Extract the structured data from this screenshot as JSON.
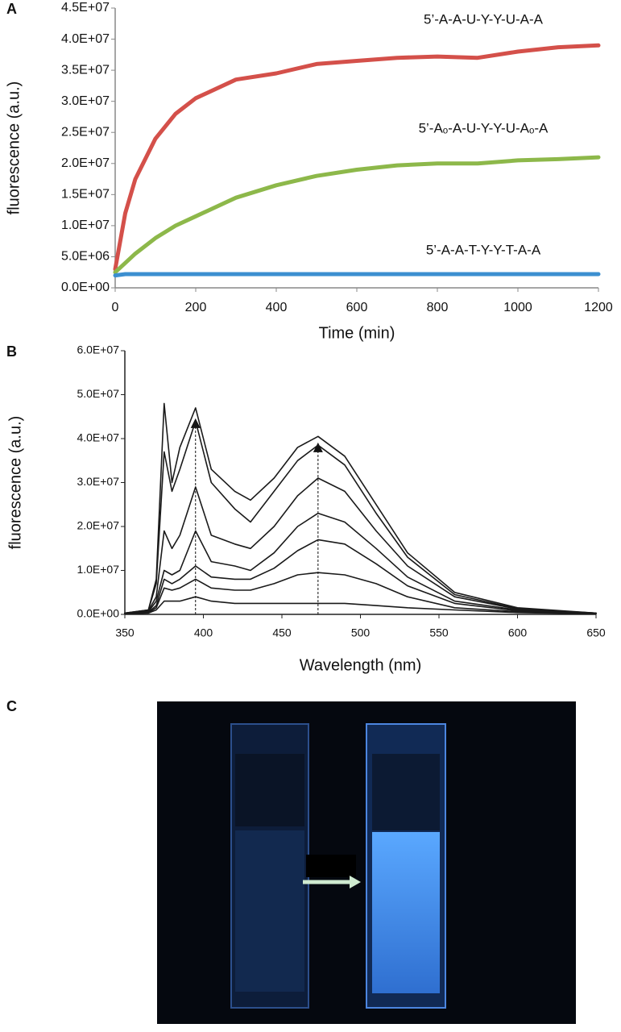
{
  "chart_data": [
    {
      "type": "line",
      "panel": "A",
      "x_label": "Time (min)",
      "y_label": "fluorescence (a.u.)",
      "x": [
        0,
        25,
        50,
        100,
        150,
        200,
        300,
        400,
        500,
        600,
        700,
        800,
        900,
        1000,
        1100,
        1200
      ],
      "series": [
        {
          "name": "5’-A-A-U-Y-Y-U-A-A",
          "color": "#d4504a",
          "values": [
            3000000,
            12000000,
            17500000,
            24000000,
            28000000,
            30500000,
            33500000,
            34500000,
            36000000,
            36500000,
            37000000,
            37200000,
            37000000,
            38000000,
            38700000,
            39000000
          ]
        },
        {
          "name": "5’-Aₒ-A-U-Y-Y-U-Aₒ-A",
          "color": "#8db84a",
          "values": [
            2500000,
            4000000,
            5500000,
            8000000,
            10000000,
            11500000,
            14500000,
            16500000,
            18000000,
            19000000,
            19700000,
            20000000,
            20000000,
            20500000,
            20700000,
            21000000
          ]
        },
        {
          "name": "5’-A-A-T-Y-Y-T-A-A",
          "color": "#3c8fd0",
          "values": [
            2000000,
            2200000,
            2200000,
            2200000,
            2200000,
            2200000,
            2200000,
            2200000,
            2200000,
            2200000,
            2200000,
            2200000,
            2200000,
            2200000,
            2200000,
            2200000
          ]
        }
      ],
      "xlim": [
        0,
        1200
      ],
      "xticks": [
        0,
        200,
        400,
        600,
        800,
        1000,
        1200
      ],
      "ylim": [
        0,
        45000000
      ],
      "yticks": [
        {
          "value": 0,
          "label": "0.0E+00"
        },
        {
          "value": 5000000,
          "label": "5.0E+06"
        },
        {
          "value": 10000000,
          "label": "1.0E+07"
        },
        {
          "value": 15000000,
          "label": "1.5E+07"
        },
        {
          "value": 20000000,
          "label": "2.0E+07"
        },
        {
          "value": 25000000,
          "label": "2.5E+07"
        },
        {
          "value": 30000000,
          "label": "3.0E+07"
        },
        {
          "value": 35000000,
          "label": "3.5E+07"
        },
        {
          "value": 40000000,
          "label": "4.0E+07"
        },
        {
          "value": 45000000,
          "label": "4.5E+07"
        }
      ]
    },
    {
      "type": "line",
      "panel": "B",
      "x_label": "Wavelength (nm)",
      "y_label": "fluorescence (a.u.)",
      "x": [
        350,
        365,
        370,
        375,
        380,
        385,
        395,
        405,
        420,
        430,
        445,
        460,
        473,
        490,
        510,
        530,
        560,
        600,
        650
      ],
      "series": [
        {
          "color": "#1a1a1a",
          "values": [
            300000,
            1000000,
            8000000,
            48000000,
            30000000,
            38000000,
            47000000,
            33000000,
            28000000,
            26000000,
            31000000,
            38000000,
            40500000,
            36000000,
            25000000,
            14000000,
            5000000,
            1500000,
            300000
          ]
        },
        {
          "color": "#1a1a1a",
          "values": [
            300000,
            1000000,
            7000000,
            37000000,
            28000000,
            33000000,
            44000000,
            30000000,
            24000000,
            21000000,
            28000000,
            35000000,
            38500000,
            34000000,
            23000000,
            13000000,
            4500000,
            1300000,
            300000
          ]
        },
        {
          "color": "#1a1a1a",
          "values": [
            300000,
            800000,
            4000000,
            19000000,
            15000000,
            18000000,
            29000000,
            18000000,
            16000000,
            15000000,
            20000000,
            27000000,
            31000000,
            28000000,
            19000000,
            11000000,
            4000000,
            1200000,
            300000
          ]
        },
        {
          "color": "#1a1a1a",
          "values": [
            300000,
            600000,
            3000000,
            10000000,
            9000000,
            10000000,
            19000000,
            12000000,
            11000000,
            10000000,
            14000000,
            20000000,
            23000000,
            21000000,
            15000000,
            8500000,
            3000000,
            1000000,
            200000
          ]
        },
        {
          "color": "#1a1a1a",
          "values": [
            200000,
            500000,
            2000000,
            8000000,
            7000000,
            8000000,
            11000000,
            8500000,
            8000000,
            8000000,
            10500000,
            14500000,
            17000000,
            16000000,
            11500000,
            6500000,
            2500000,
            800000,
            200000
          ]
        },
        {
          "color": "#1a1a1a",
          "values": [
            200000,
            400000,
            1500000,
            6000000,
            5500000,
            6000000,
            8000000,
            6000000,
            5500000,
            5500000,
            7000000,
            9000000,
            9500000,
            9000000,
            7000000,
            4000000,
            1500000,
            600000,
            200000
          ]
        },
        {
          "color": "#1a1a1a",
          "values": [
            100000,
            300000,
            1000000,
            3000000,
            3000000,
            3000000,
            4000000,
            3000000,
            2500000,
            2500000,
            2500000,
            2500000,
            2500000,
            2500000,
            2000000,
            1500000,
            1000000,
            400000,
            100000
          ]
        }
      ],
      "vlines": [
        {
          "x": 395,
          "y": 43500000
        },
        {
          "x": 473,
          "y": 38000000
        }
      ],
      "xlim": [
        350,
        650
      ],
      "xticks": [
        350,
        400,
        450,
        500,
        550,
        600,
        650
      ],
      "ylim": [
        0,
        60000000
      ],
      "yticks": [
        {
          "value": 0,
          "label": "0.0E+00"
        },
        {
          "value": 10000000,
          "label": "1.0E+07"
        },
        {
          "value": 20000000,
          "label": "2.0E+07"
        },
        {
          "value": 30000000,
          "label": "3.0E+07"
        },
        {
          "value": 40000000,
          "label": "4.0E+07"
        },
        {
          "value": 50000000,
          "label": "5.0E+07"
        },
        {
          "value": 60000000,
          "label": "6.0E+07"
        }
      ]
    }
  ],
  "photo": {
    "panel": "C"
  }
}
